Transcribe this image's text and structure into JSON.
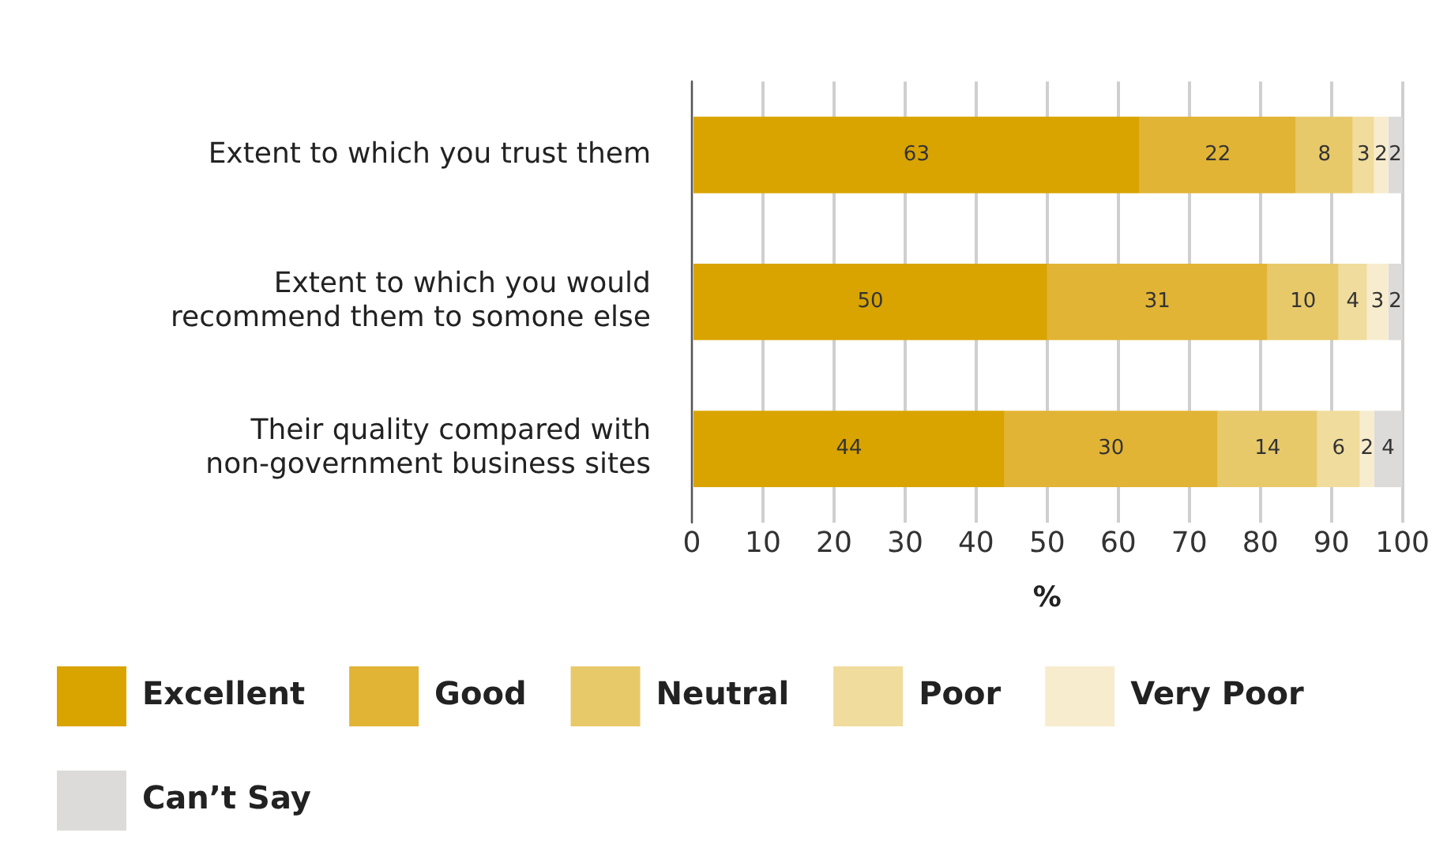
{
  "chart_data": {
    "type": "bar",
    "orientation": "horizontal",
    "stacked": true,
    "categories": [
      "Extent to which you trust them",
      "Extent to which you would recommend them to somone else",
      "Their quality compared with non-government business sites"
    ],
    "series": [
      {
        "name": "Excellent",
        "color": "#d9a400",
        "values": [
          63,
          50,
          44
        ]
      },
      {
        "name": "Good",
        "color": "#e2b435",
        "values": [
          22,
          31,
          30
        ]
      },
      {
        "name": "Neutral",
        "color": "#e8c96a",
        "values": [
          8,
          10,
          14
        ]
      },
      {
        "name": "Poor",
        "color": "#f0dc9c",
        "values": [
          3,
          4,
          6
        ]
      },
      {
        "name": "Very Poor",
        "color": "#f7ecce",
        "values": [
          2,
          3,
          2
        ]
      },
      {
        "name": "Can’t Say",
        "color": "#dcdbd9",
        "values": [
          2,
          2,
          4
        ]
      }
    ],
    "xlabel": "%",
    "xlim": [
      0,
      100
    ],
    "xticks": [
      0,
      10,
      20,
      30,
      40,
      50,
      60,
      70,
      80,
      90,
      100
    ],
    "grid": "x",
    "legend": "bottom",
    "data_labels": true
  }
}
